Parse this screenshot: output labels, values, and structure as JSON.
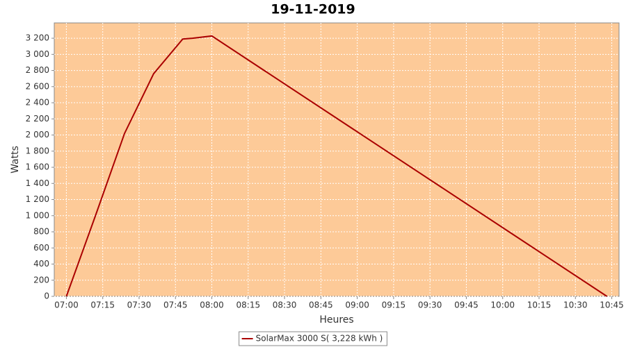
{
  "chart_data": {
    "type": "line",
    "title": "19-11-2019",
    "xlabel": "Heures",
    "ylabel": "Watts",
    "xlim": [
      "06:55",
      "10:48"
    ],
    "xticks": [
      "07:00",
      "07:15",
      "07:30",
      "07:45",
      "08:00",
      "08:15",
      "08:30",
      "08:45",
      "09:00",
      "09:15",
      "09:30",
      "09:45",
      "10:00",
      "10:15",
      "10:30",
      "10:45"
    ],
    "ylim": [
      0,
      3390
    ],
    "yticks": [
      0,
      200,
      400,
      600,
      800,
      {
        "value": 1000,
        "label": "1 000"
      },
      {
        "value": 1200,
        "label": "1 200"
      },
      {
        "value": 1400,
        "label": "1 400"
      },
      {
        "value": 1600,
        "label": "1 600"
      },
      {
        "value": 1800,
        "label": "1 800"
      },
      {
        "value": 2000,
        "label": "2 000"
      },
      {
        "value": 2200,
        "label": "2 200"
      },
      {
        "value": 2400,
        "label": "2 400"
      },
      {
        "value": 2600,
        "label": "2 600"
      },
      {
        "value": 2800,
        "label": "2 800"
      },
      {
        "value": 3000,
        "label": "3 000"
      },
      {
        "value": 3200,
        "label": "3 200"
      }
    ],
    "grid": true,
    "background": "#fdca98",
    "legend": "bottom",
    "series": [
      {
        "name": "SolarMax 3000 S( 3,228 kWh )",
        "color": "#aa0000",
        "x": [
          "07:00",
          "07:12",
          "07:24",
          "07:36",
          "07:48",
          "07:52",
          "08:00",
          "10:43"
        ],
        "values": [
          0,
          1000,
          2020,
          2760,
          3190,
          3200,
          3228,
          0
        ]
      }
    ]
  }
}
